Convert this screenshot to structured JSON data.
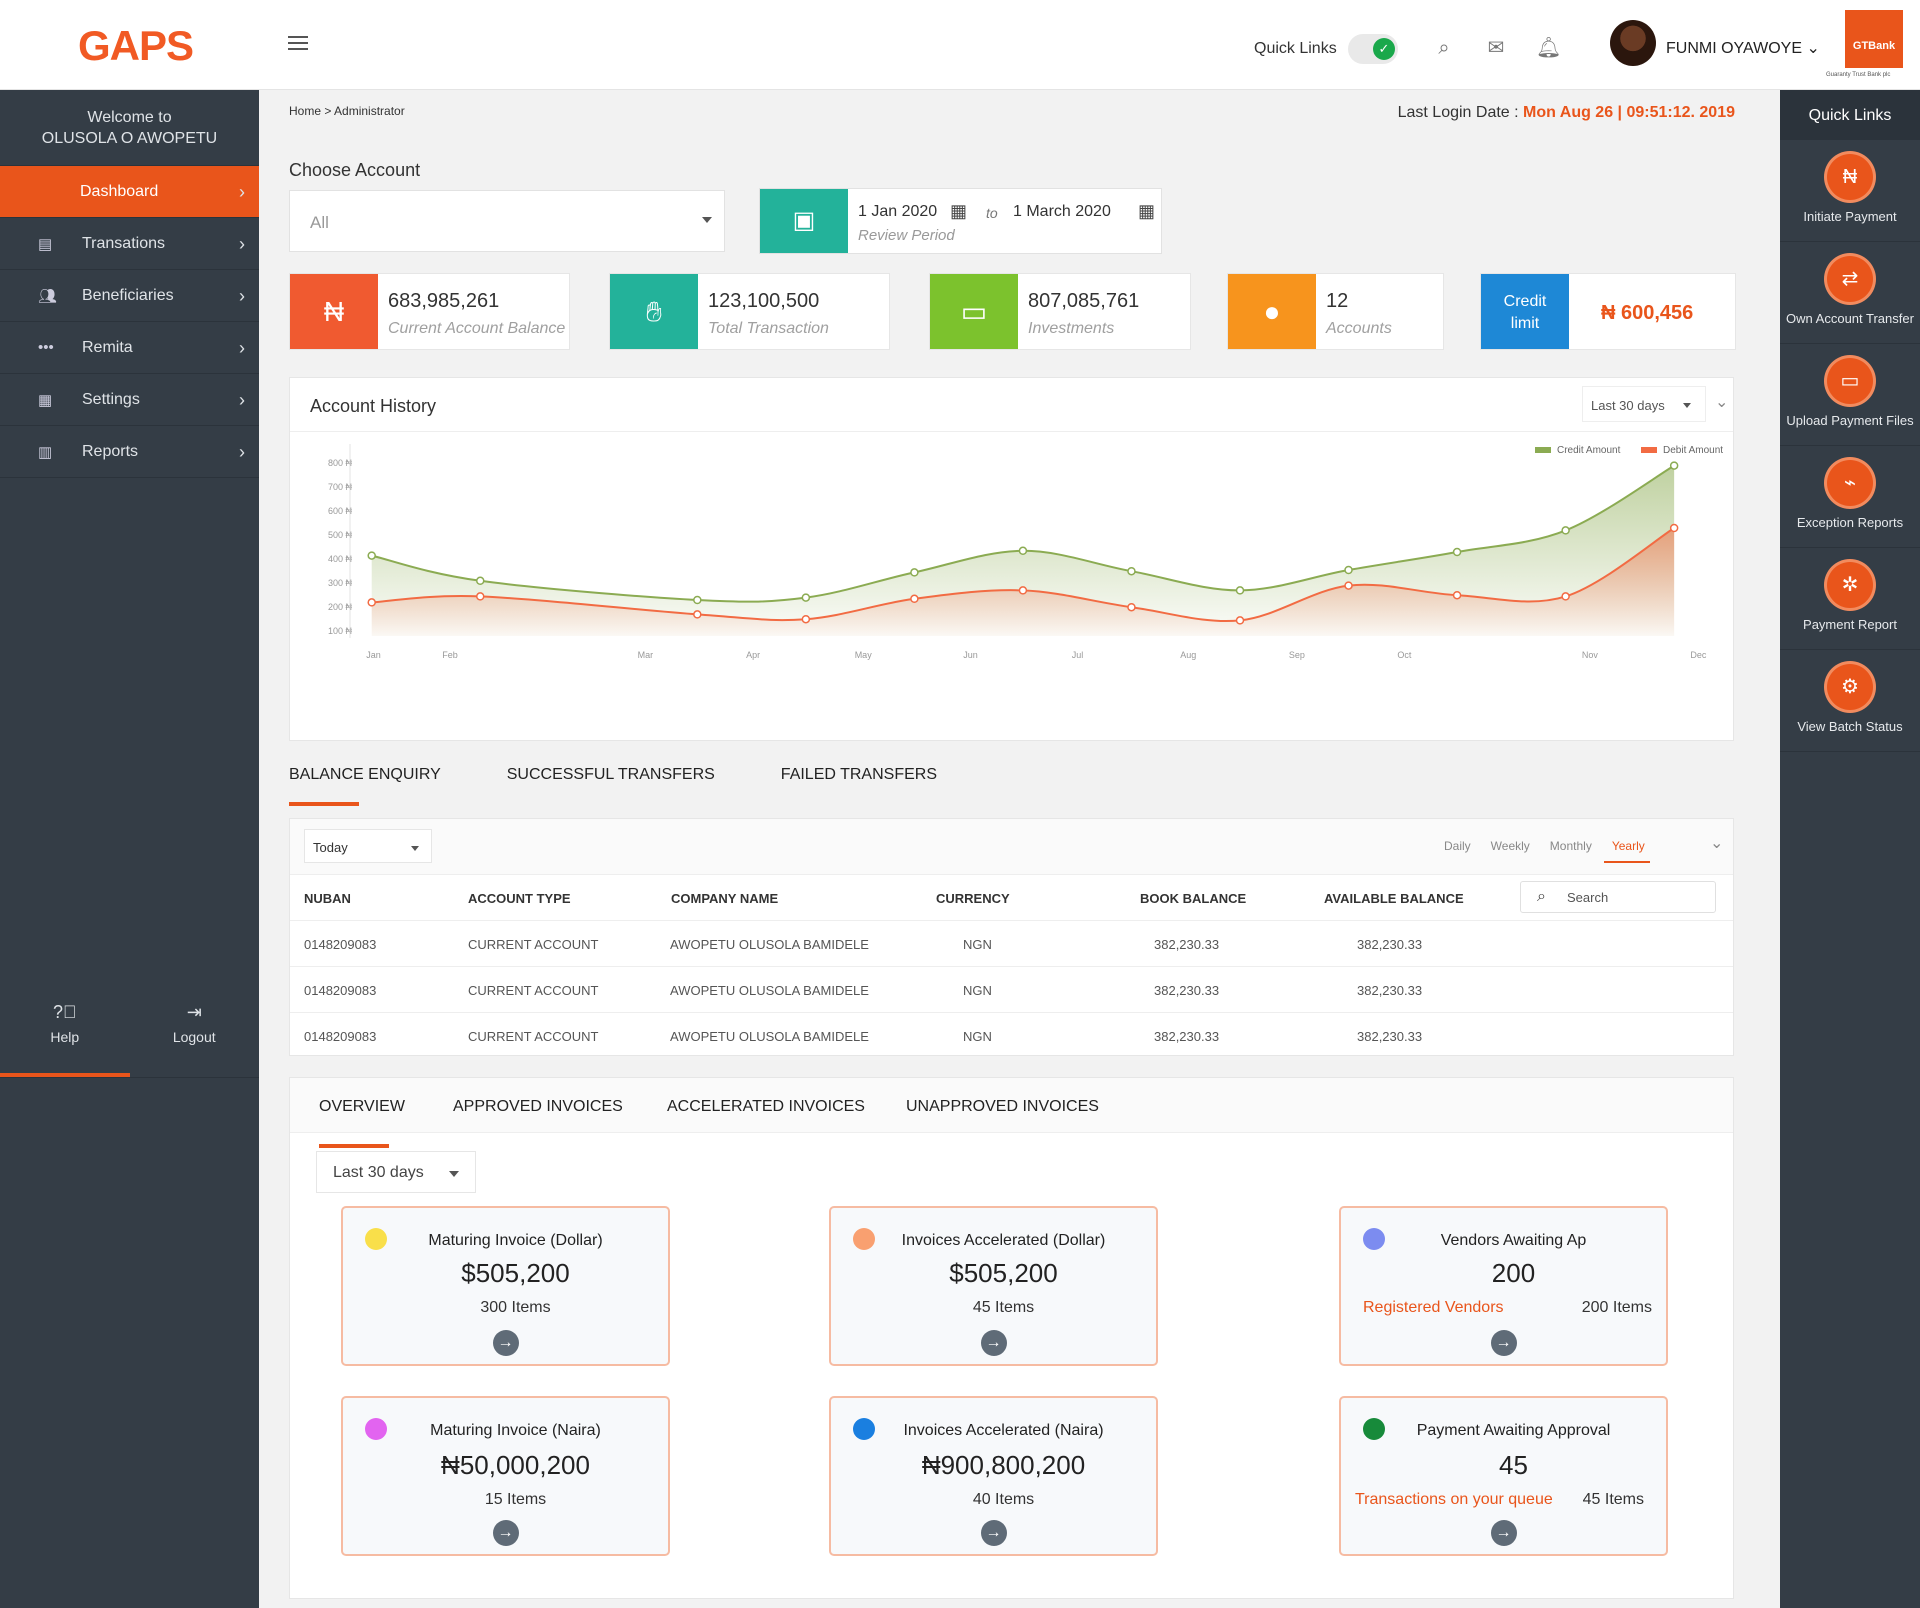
{
  "header": {
    "logo": "GAPS",
    "quick_links_label": "Quick Links",
    "user_name": "FUNMI OYAWOYE",
    "bank_logo": "GTBank",
    "bank_tagline": "Guaranty Trust Bank plc"
  },
  "sidebar": {
    "welcome_line1": "Welcome to",
    "welcome_line2": "OLUSOLA O AWOPETU",
    "items": [
      {
        "label": "Dashboard",
        "icon": "dashboard-icon"
      },
      {
        "label": "Transations",
        "icon": "transactions-icon"
      },
      {
        "label": "Beneficiaries",
        "icon": "beneficiaries-icon"
      },
      {
        "label": "Remita",
        "icon": "more-dots-icon"
      },
      {
        "label": "Settings",
        "icon": "settings-icon"
      },
      {
        "label": "Reports",
        "icon": "reports-icon"
      }
    ],
    "help_label": "Help",
    "logout_label": "Logout"
  },
  "quick_links": {
    "title": "Quick Links",
    "items": [
      {
        "label": "Initiate Payment",
        "icon": "initiate-payment-icon"
      },
      {
        "label": "Own Account Transfer",
        "icon": "own-account-transfer-icon"
      },
      {
        "label": "Upload Payment Files",
        "icon": "upload-payment-icon"
      },
      {
        "label": "Exception Reports",
        "icon": "exception-reports-icon"
      },
      {
        "label": "Payment Report",
        "icon": "payment-report-icon"
      },
      {
        "label": "View Batch Status",
        "icon": "batch-status-icon"
      }
    ]
  },
  "main": {
    "breadcrumb": "Home > Administrator",
    "last_login_label": "Last Login Date :",
    "last_login_value": "Mon Aug 26 | 09:51:12. 2019",
    "choose_account_label": "Choose Account",
    "account_select_value": "All",
    "period_from": "1 Jan 2020",
    "period_to_word": "to",
    "period_to": "1 March 2020",
    "period_label": "Review Period"
  },
  "stats": [
    {
      "value": "683,985,261",
      "label": "Current Account Balance",
      "color": "#f05a30"
    },
    {
      "value": "123,100,500",
      "label": "Total Transaction",
      "color": "#23b29a"
    },
    {
      "value": "807,085,761",
      "label": "Investments",
      "color": "#7cc22d"
    },
    {
      "value": "12",
      "label": "Accounts",
      "color": "#f7941d"
    }
  ],
  "credit": {
    "label_line1": "Credit",
    "label_line2": "limit",
    "value": "₦ 600,456",
    "color": "#1e88d6"
  },
  "account_history": {
    "title": "Account History",
    "range": "Last 30 days"
  },
  "chart_data": {
    "type": "area",
    "categories": [
      "Jan",
      "Feb",
      "Mar",
      "Apr",
      "May",
      "Jun",
      "Jul",
      "Aug",
      "Sep",
      "Oct",
      "Nov",
      "Dec"
    ],
    "y_ticks": [
      "800 ₦",
      "700 ₦",
      "600 ₦",
      "500 ₦",
      "400 ₦",
      "300 ₦",
      "200 ₦",
      "100 ₦"
    ],
    "ylim": [
      100,
      800
    ],
    "series": [
      {
        "name": "Credit Amount",
        "color": "#8bab52",
        "points": [
          [
            0.9,
            410
          ],
          [
            1.9,
            305
          ],
          [
            3.9,
            225
          ],
          [
            4.9,
            235
          ],
          [
            5.9,
            340
          ],
          [
            6.9,
            430
          ],
          [
            7.9,
            345
          ],
          [
            8.9,
            265
          ],
          [
            9.9,
            350
          ],
          [
            10.9,
            425
          ],
          [
            11.9,
            515
          ],
          [
            12.9,
            785
          ]
        ]
      },
      {
        "name": "Debit Amount",
        "color": "#f26b43",
        "points": [
          [
            0.9,
            215
          ],
          [
            1.9,
            240
          ],
          [
            3.9,
            165
          ],
          [
            4.9,
            145
          ],
          [
            5.9,
            230
          ],
          [
            6.9,
            265
          ],
          [
            7.9,
            195
          ],
          [
            8.9,
            140
          ],
          [
            9.9,
            285
          ],
          [
            10.9,
            245
          ],
          [
            11.9,
            240
          ],
          [
            12.9,
            525
          ]
        ]
      }
    ],
    "legend_position": "top-right",
    "grid": false
  },
  "balance_tabs": [
    "BALANCE ENQUIRY",
    "SUCCESSFUL TRANSFERS",
    "FAILED TRANSFERS"
  ],
  "table": {
    "filter": "Today",
    "periods": [
      "Daily",
      "Weekly",
      "Monthly",
      "Yearly"
    ],
    "search_placeholder": "Search",
    "columns": [
      "NUBAN",
      "ACCOUNT TYPE",
      "COMPANY NAME",
      "CURRENCY",
      "BOOK BALANCE",
      "AVAILABLE BALANCE"
    ],
    "rows": [
      [
        "0148209083",
        "CURRENT ACCOUNT",
        "AWOPETU OLUSOLA BAMIDELE",
        "NGN",
        "382,230.33",
        "382,230.33"
      ],
      [
        "0148209083",
        "CURRENT ACCOUNT",
        "AWOPETU OLUSOLA BAMIDELE",
        "NGN",
        "382,230.33",
        "382,230.33"
      ],
      [
        "0148209083",
        "CURRENT ACCOUNT",
        "AWOPETU OLUSOLA BAMIDELE",
        "NGN",
        "382,230.33",
        "382,230.33"
      ]
    ]
  },
  "invoice_tabs": [
    "OVERVIEW",
    "APPROVED INVOICES",
    "ACCELERATED INVOICES",
    "UNAPPROVED INVOICES"
  ],
  "invoice_range": "Last 30 days",
  "invoice_cards": [
    {
      "title": "Maturing Invoice (Dollar)",
      "value": "$505,200",
      "items": "300 Items",
      "color": "#f9df4a"
    },
    {
      "title": "Invoices Accelerated (Dollar)",
      "value": "$505,200",
      "items": "45 Items",
      "color": "#f9a070"
    },
    {
      "title": "Vendors Awaiting Ap",
      "value": "200",
      "link": "Registered Vendors",
      "items": "200 Items",
      "color": "#7c8cf0"
    },
    {
      "title": "Maturing Invoice (Naira)",
      "value": "₦50,000,200",
      "items": "15 Items",
      "color": "#e264f0"
    },
    {
      "title": "Invoices Accelerated (Naira)",
      "value": "₦900,800,200",
      "items": "40 Items",
      "color": "#1a7fe0"
    },
    {
      "title": "Payment Awaiting Approval",
      "value": "45",
      "link": "Transactions on your queue",
      "items": "45 Items",
      "color": "#178a3a"
    }
  ]
}
